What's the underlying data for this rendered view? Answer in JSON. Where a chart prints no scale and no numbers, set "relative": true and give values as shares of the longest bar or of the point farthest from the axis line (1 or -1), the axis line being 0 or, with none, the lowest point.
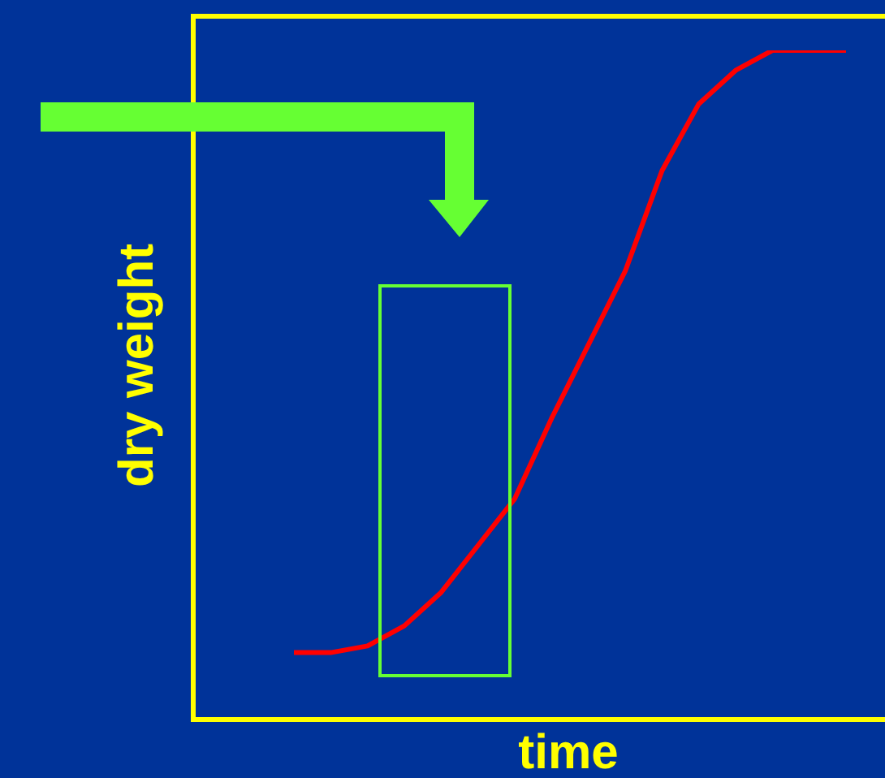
{
  "chart_data": {
    "type": "line",
    "relative": true,
    "xlabel": "time",
    "ylabel": "dry weight",
    "categories": [
      null,
      null,
      null,
      null,
      null,
      null,
      null,
      null,
      null,
      null,
      null,
      null,
      null,
      null,
      null,
      null
    ],
    "series": [
      {
        "color": "#ff0000",
        "values": [
          0.1,
          0.1,
          0.11,
          0.14,
          0.19,
          0.26,
          0.33,
          0.45,
          0.56,
          0.67,
          0.82,
          0.92,
          0.97,
          1,
          1,
          1
        ]
      }
    ],
    "legend": false,
    "marker": "none",
    "line_style": "solid"
  }
}
